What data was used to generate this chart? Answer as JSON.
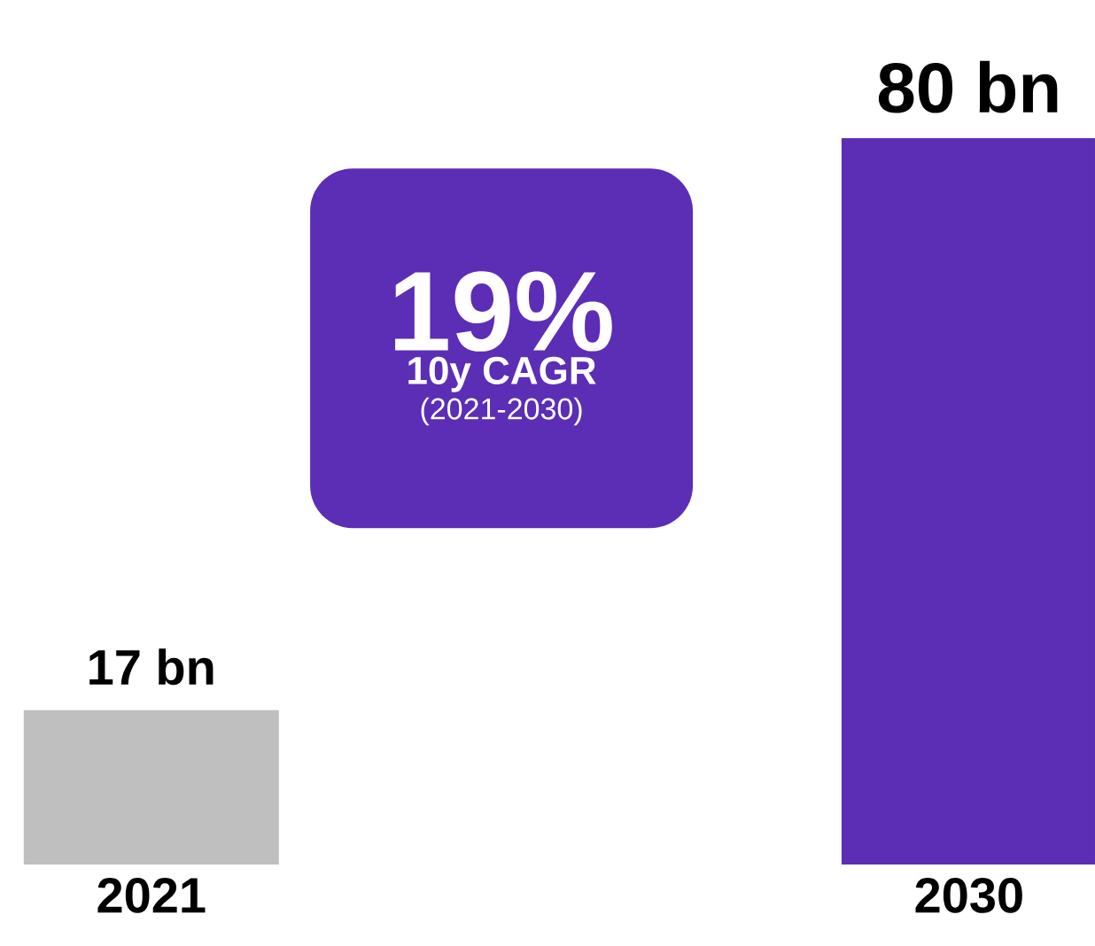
{
  "chart_data": {
    "type": "bar",
    "categories": [
      "2021",
      "2030"
    ],
    "values": [
      17,
      80
    ],
    "colors": [
      "#bfbfbf",
      "#5c2db5"
    ],
    "value_labels": [
      "17 bn",
      "80 bn"
    ],
    "annotations": [
      "19%",
      "10y CAGR",
      "(2021-2030)"
    ]
  }
}
